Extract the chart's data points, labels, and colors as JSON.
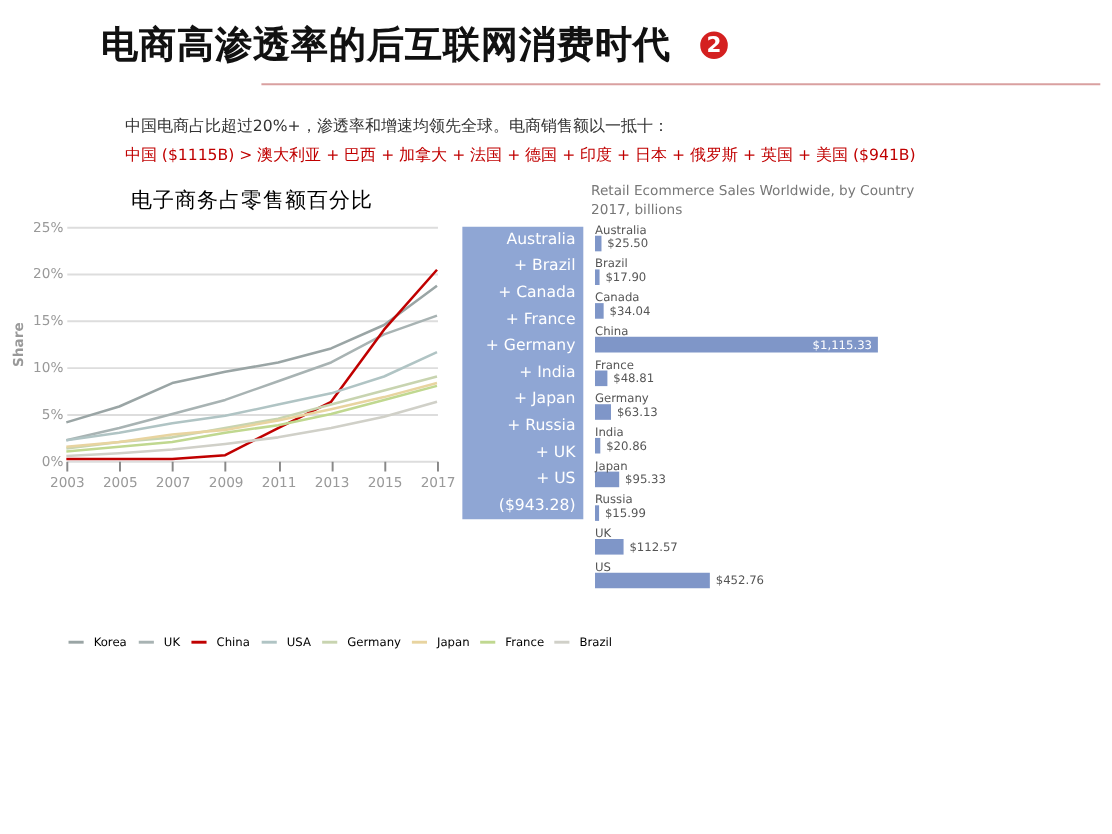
{
  "chart_data": [
    {
      "type": "line",
      "title": "电子商务占零售额百分比",
      "ylabel": "Share",
      "annotations": [
        "电商高渗透率的后互联网消费时代",
        "2",
        "中国电商占比超过20%+，渗透率和增速均领先全球。电商销售额以一抵十：",
        "中国 ($1115B) > 澳大利亚 + 巴西 + 加拿大 + 法国 + 德国 + 印度 + 日本 + 俄罗斯 + 英国 + 美国 ($941B)"
      ],
      "x": [
        2003,
        2005,
        2007,
        2009,
        2011,
        2013,
        2015,
        2017
      ],
      "xlim": [
        2003,
        2017
      ],
      "xticks": [
        2003,
        2005,
        2007,
        2009,
        2011,
        2013,
        2015,
        2017
      ],
      "ylim": [
        0,
        25
      ],
      "yticks": [
        {
          "value": 0,
          "label": "0%"
        },
        {
          "value": 5,
          "label": "5%"
        },
        {
          "value": 10,
          "label": "10%"
        },
        {
          "value": 15,
          "label": "15%"
        },
        {
          "value": 20,
          "label": "20%"
        },
        {
          "value": 25,
          "label": "25%"
        }
      ],
      "grid": "y",
      "legend": "bottom",
      "marker": "none",
      "line_style": "solid",
      "series": [
        {
          "name": "Korea",
          "color": "#9aa5a5",
          "values": [
            4.1,
            5.8,
            8.3,
            9.5,
            10.5,
            12,
            14.5,
            18.7
          ]
        },
        {
          "name": "UK",
          "color": "#a8b3b3",
          "values": [
            2.2,
            3.5,
            5,
            6.5,
            8.5,
            10.5,
            13.5,
            15.5
          ]
        },
        {
          "name": "China",
          "color": "#c00000",
          "values": [
            0.2,
            0.2,
            0.2,
            0.6,
            3.5,
            6.3,
            14,
            20.4
          ]
        },
        {
          "name": "USA",
          "color": "#b0c4c4",
          "values": [
            2.2,
            3,
            4,
            4.8,
            6,
            7.2,
            9,
            11.6
          ]
        },
        {
          "name": "Germany",
          "color": "#c8d4b0",
          "values": [
            1.3,
            2,
            2.5,
            3.5,
            4.5,
            6,
            7.5,
            9
          ]
        },
        {
          "name": "Japan",
          "color": "#e8d4a0",
          "values": [
            1.5,
            2,
            2.8,
            3.3,
            4.3,
            5.5,
            6.8,
            8.3
          ]
        },
        {
          "name": "France",
          "color": "#c0d890",
          "values": [
            1,
            1.5,
            2,
            3,
            3.8,
            5,
            6.5,
            8
          ]
        },
        {
          "name": "Brazil",
          "color": "#d0d0c8",
          "values": [
            0.5,
            0.8,
            1.2,
            1.8,
            2.5,
            3.5,
            4.7,
            6.3
          ]
        }
      ]
    },
    {
      "type": "bar",
      "orientation": "horizontal",
      "title": "Retail Ecommerce Sales Worldwide, by Country",
      "subtitle": "2017, billions",
      "categories": [
        "Australia",
        "Brazil",
        "Canada",
        "China",
        "France",
        "Germany",
        "India",
        "Japan",
        "Russia",
        "UK",
        "US"
      ],
      "values": [
        25.5,
        17.9,
        34.04,
        1115.33,
        48.81,
        63.13,
        20.86,
        95.33,
        15.99,
        112.57,
        452.76
      ],
      "value_labels": [
        "$25.50",
        "$17.90",
        "$34.04",
        "$1,115.33",
        "$48.81",
        "$63.13",
        "$20.86",
        "$95.33",
        "$15.99",
        "$112.57",
        "$452.76"
      ],
      "color": "#7f96c8",
      "annotations": [
        "Australia",
        "+ Brazil",
        "+ Canada",
        "+ France",
        "+ Germany",
        "+ India",
        "+ Japan",
        "+ Russia",
        "+ UK",
        "+ US",
        "($943.28)"
      ]
    }
  ]
}
